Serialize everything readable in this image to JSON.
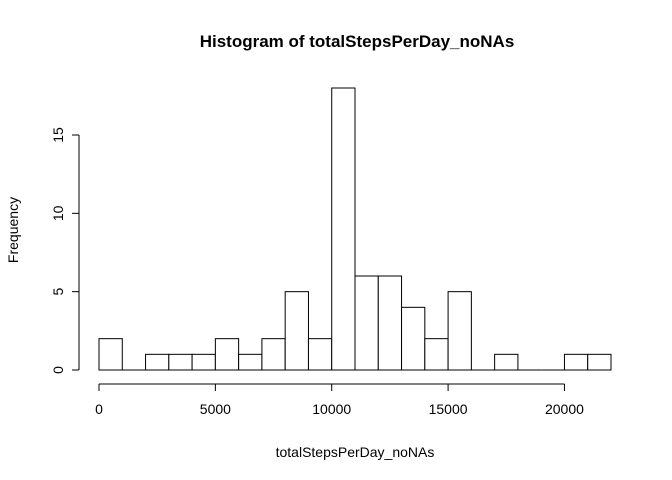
{
  "chart_data": {
    "type": "bar",
    "title": "Histogram of totalStepsPerDay_noNAs",
    "xlabel": "totalStepsPerDay_noNAs",
    "ylabel": "Frequency",
    "bin_width": 1000,
    "bin_starts": [
      0,
      1000,
      2000,
      3000,
      4000,
      5000,
      6000,
      7000,
      8000,
      9000,
      10000,
      11000,
      12000,
      13000,
      14000,
      15000,
      16000,
      17000,
      18000,
      19000,
      20000,
      21000
    ],
    "values": [
      2,
      0,
      1,
      1,
      1,
      2,
      1,
      2,
      5,
      2,
      18,
      6,
      6,
      4,
      2,
      5,
      0,
      1,
      0,
      0,
      1,
      1
    ],
    "xlim": [
      0,
      22000
    ],
    "ylim": [
      0,
      18
    ],
    "x_ticks": [
      0,
      5000,
      10000,
      15000,
      20000
    ],
    "x_tick_labels": [
      "0",
      "5000",
      "10000",
      "15000",
      "20000"
    ],
    "y_ticks": [
      0,
      5,
      10,
      15
    ],
    "y_tick_labels": [
      "0",
      "5",
      "10",
      "15"
    ]
  }
}
